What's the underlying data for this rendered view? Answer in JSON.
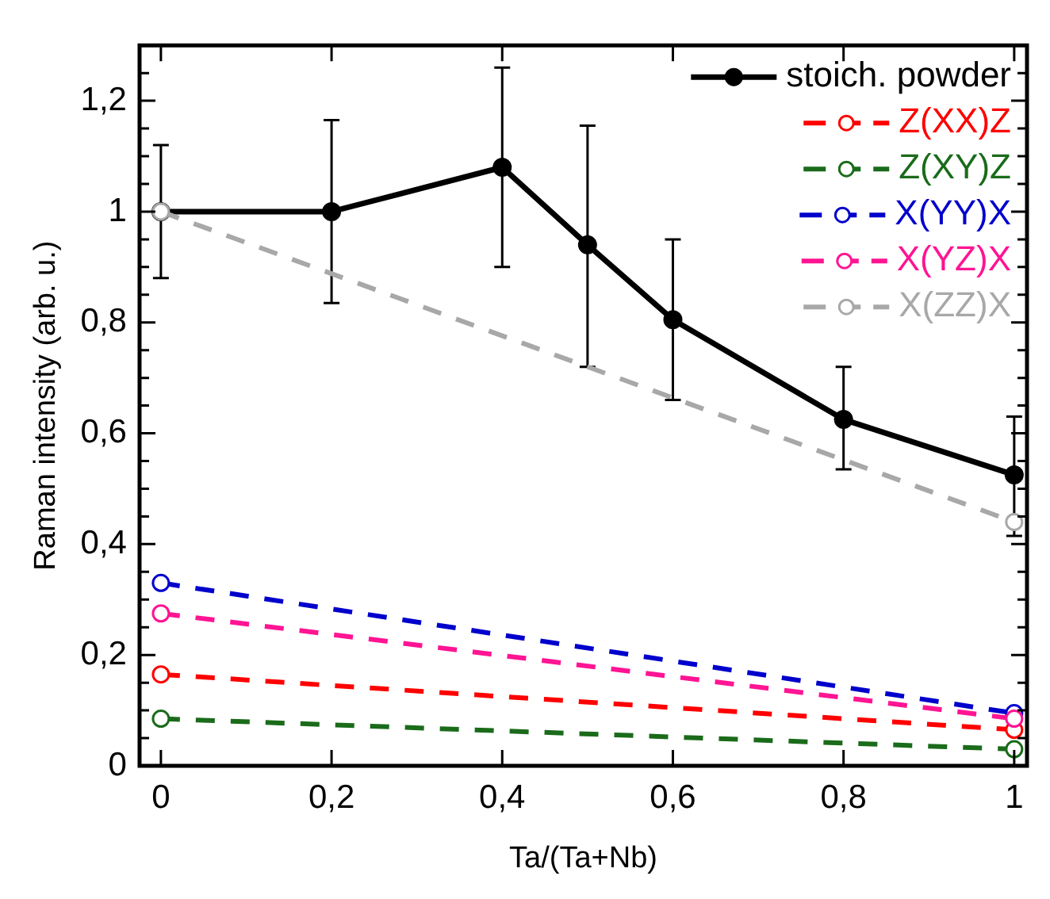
{
  "chart_data": {
    "type": "line",
    "xlabel": "Ta/(Ta+Nb)",
    "ylabel": "Raman intensity (arb. u.)",
    "xlim": [
      -0.025,
      1.015
    ],
    "ylim": [
      0,
      1.3
    ],
    "xticks": [
      {
        "value": 0,
        "label": "0"
      },
      {
        "value": 0.2,
        "label": "0,2"
      },
      {
        "value": 0.4,
        "label": "0,4"
      },
      {
        "value": 0.6,
        "label": "0,6"
      },
      {
        "value": 0.8,
        "label": "0,8"
      },
      {
        "value": 1,
        "label": "1"
      }
    ],
    "yticks": [
      {
        "value": 0,
        "label": "0"
      },
      {
        "value": 0.05,
        "label": null
      },
      {
        "value": 0.1,
        "label": null
      },
      {
        "value": 0.15,
        "label": null
      },
      {
        "value": 0.2,
        "label": "0,2"
      },
      {
        "value": 0.25,
        "label": null
      },
      {
        "value": 0.3,
        "label": null
      },
      {
        "value": 0.35,
        "label": null
      },
      {
        "value": 0.4,
        "label": "0,4"
      },
      {
        "value": 0.45,
        "label": null
      },
      {
        "value": 0.5,
        "label": null
      },
      {
        "value": 0.55,
        "label": null
      },
      {
        "value": 0.6,
        "label": "0,6"
      },
      {
        "value": 0.65,
        "label": null
      },
      {
        "value": 0.7,
        "label": null
      },
      {
        "value": 0.75,
        "label": null
      },
      {
        "value": 0.8,
        "label": "0,8"
      },
      {
        "value": 0.85,
        "label": null
      },
      {
        "value": 0.9,
        "label": null
      },
      {
        "value": 0.95,
        "label": null
      },
      {
        "value": 1,
        "label": "1"
      },
      {
        "value": 1.05,
        "label": null
      },
      {
        "value": 1.1,
        "label": null
      },
      {
        "value": 1.15,
        "label": null
      },
      {
        "value": 1.2,
        "label": "1,2"
      },
      {
        "value": 1.25,
        "label": null
      }
    ],
    "grid": false,
    "legend": "top right",
    "series": [
      {
        "name": "stoich. powder",
        "color": "#000000",
        "marker": "circle",
        "line_style": "solid",
        "x": [
          0,
          0.2,
          0.4,
          0.5,
          0.6,
          0.8,
          1
        ],
        "values": [
          1.0,
          1.0,
          1.08,
          0.94,
          0.805,
          0.625,
          0.525
        ],
        "errors": [
          [
            0.88,
            1.12
          ],
          [
            0.835,
            1.165
          ],
          [
            0.9,
            1.26
          ],
          [
            0.72,
            1.155
          ],
          [
            0.66,
            0.95
          ],
          [
            0.535,
            0.72
          ],
          [
            0.415,
            0.63
          ]
        ]
      },
      {
        "name": "Z(XX)Z",
        "color": "#ff0000",
        "marker": "circle",
        "line_style": "dashed",
        "x": [
          0,
          1
        ],
        "values": [
          0.165,
          0.065
        ]
      },
      {
        "name": "Z(XY)Z",
        "color": "#1a6b1a",
        "marker": "circle",
        "line_style": "dashed",
        "x": [
          0,
          1
        ],
        "values": [
          0.085,
          0.03
        ]
      },
      {
        "name": "X(YY)X",
        "color": "#0000cc",
        "marker": "circle",
        "line_style": "dashed",
        "x": [
          0,
          1
        ],
        "values": [
          0.33,
          0.095
        ]
      },
      {
        "name": "X(YZ)X",
        "color": "#ff1493",
        "marker": "circle",
        "line_style": "dashed",
        "x": [
          0,
          1
        ],
        "values": [
          0.275,
          0.085
        ]
      },
      {
        "name": "X(ZZ)X",
        "color": "#a8a8a8",
        "marker": "circle",
        "line_style": "dashed",
        "x": [
          0,
          1
        ],
        "values": [
          1.0,
          0.44
        ]
      }
    ]
  }
}
